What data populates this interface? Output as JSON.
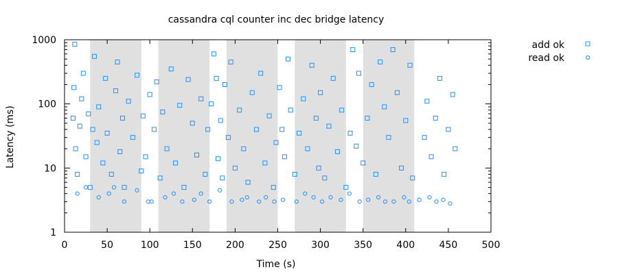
{
  "chart_data": {
    "type": "scatter",
    "title": "cassandra cql counter inc dec bridge latency",
    "xlabel": "Time (s)",
    "ylabel": "Latency (ms)",
    "xlim": [
      0,
      500
    ],
    "ylim": [
      1,
      1000
    ],
    "yscale": "log",
    "xticks": [
      0,
      50,
      100,
      150,
      200,
      250,
      300,
      350,
      400,
      450,
      500
    ],
    "xtick_labels": [
      "0",
      "50",
      "100",
      "150",
      "200",
      "250",
      "300",
      "350",
      "400",
      "450",
      "500"
    ],
    "yticks": [
      1,
      10,
      100,
      1000
    ],
    "ytick_labels": [
      "1",
      "10",
      "100",
      "1000"
    ],
    "grid": false,
    "legend_position": "outside-top-right",
    "shaded_intervals": [
      [
        30,
        90
      ],
      [
        110,
        170
      ],
      [
        190,
        250
      ],
      [
        270,
        330
      ],
      [
        350,
        410
      ]
    ],
    "shade_color": "#e0e0e0",
    "series": [
      {
        "name": "add ok",
        "marker": "square",
        "color": "#1e90ff",
        "x": [
          10,
          11,
          12,
          13,
          15,
          18,
          20,
          22,
          25,
          28,
          30,
          33,
          35,
          38,
          40,
          45,
          48,
          50,
          55,
          60,
          62,
          65,
          68,
          70,
          75,
          80,
          85,
          90,
          92,
          95,
          100,
          105,
          108,
          112,
          115,
          120,
          125,
          130,
          135,
          140,
          145,
          150,
          155,
          160,
          165,
          168,
          172,
          175,
          178,
          180,
          183,
          185,
          188,
          192,
          195,
          200,
          205,
          210,
          215,
          220,
          225,
          230,
          235,
          240,
          245,
          248,
          252,
          255,
          258,
          262,
          265,
          270,
          275,
          280,
          285,
          290,
          295,
          298,
          300,
          305,
          310,
          315,
          320,
          325,
          330,
          335,
          338,
          342,
          345,
          350,
          355,
          360,
          365,
          370,
          375,
          380,
          385,
          390,
          395,
          400,
          405,
          408,
          422,
          425,
          430,
          435,
          440,
          445,
          450,
          455,
          458
        ],
        "y": [
          60,
          180,
          850,
          20,
          8,
          45,
          120,
          300,
          15,
          70,
          5,
          40,
          550,
          25,
          90,
          12,
          250,
          35,
          8,
          160,
          450,
          18,
          60,
          5,
          110,
          30,
          280,
          9,
          65,
          15,
          140,
          40,
          220,
          7,
          75,
          20,
          350,
          12,
          95,
          5,
          240,
          50,
          16,
          120,
          8,
          40,
          100,
          600,
          250,
          14,
          55,
          7,
          200,
          30,
          450,
          10,
          80,
          20,
          6,
          150,
          40,
          300,
          12,
          65,
          5,
          25,
          180,
          40,
          15,
          500,
          80,
          8,
          35,
          120,
          20,
          400,
          60,
          10,
          150,
          7,
          45,
          250,
          18,
          80,
          5,
          35,
          700,
          22,
          300,
          12,
          60,
          200,
          8,
          450,
          90,
          30,
          700,
          150,
          10,
          55,
          400,
          7,
          30,
          110,
          15,
          60,
          250,
          8,
          40,
          140,
          20
        ]
      },
      {
        "name": "read ok",
        "marker": "circle",
        "color": "#1e90ff",
        "x": [
          15,
          25,
          40,
          52,
          58,
          70,
          85,
          98,
          102,
          118,
          128,
          138,
          152,
          160,
          170,
          182,
          196,
          208,
          214,
          228,
          236,
          246,
          256,
          272,
          282,
          292,
          302,
          312,
          324,
          334,
          346,
          356,
          368,
          376,
          386,
          398,
          404,
          416,
          428,
          436,
          444,
          452
        ],
        "y": [
          4,
          5,
          3.5,
          4,
          5,
          3,
          4.5,
          3,
          3,
          3.5,
          4,
          3,
          3.2,
          4,
          3,
          4.5,
          3,
          3.2,
          3.5,
          3,
          3.5,
          3,
          3.2,
          3,
          4,
          3.5,
          3,
          3.5,
          3.2,
          4,
          3,
          3.2,
          3.5,
          3,
          3,
          3.5,
          3,
          3.2,
          3.5,
          3,
          3.2,
          2.8
        ]
      }
    ]
  }
}
